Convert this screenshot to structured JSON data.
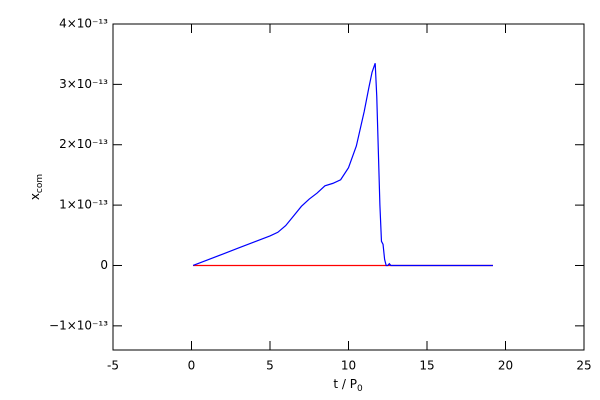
{
  "chart_data": {
    "type": "line",
    "xlabel": {
      "text": "t / P",
      "sub": "0"
    },
    "ylabel": {
      "text": "x",
      "sub": "com"
    },
    "xlim": [
      -5,
      25
    ],
    "xticks": [
      -5,
      0,
      5,
      10,
      15,
      20,
      25
    ],
    "ylim": [
      -1.4e-13,
      4e-13
    ],
    "yticks": [
      {
        "value": -1e-13,
        "label": "−1×10⁻¹³"
      },
      0,
      {
        "value": 1e-13,
        "label": "1×10⁻¹³"
      },
      {
        "value": 2e-13,
        "label": "2×10⁻¹³"
      },
      {
        "value": 3e-13,
        "label": "3×10⁻¹³"
      },
      {
        "value": 4e-13,
        "label": "4×10⁻¹³"
      }
    ],
    "series": [
      {
        "color": "#ff0000",
        "x": [
          0.1,
          5,
          10,
          12.4,
          15,
          19.2
        ],
        "values": [
          0,
          0,
          0,
          0,
          0,
          0
        ]
      },
      {
        "color": "#0000ff",
        "x": [
          0.1,
          1,
          2,
          3,
          4,
          5,
          5.5,
          6,
          6.5,
          7,
          7.5,
          8,
          8.5,
          9,
          9.5,
          10,
          10.5,
          11,
          11.3,
          11.5,
          11.7,
          11.8,
          11.9,
          12.0,
          12.1,
          12.2,
          12.3,
          12.4,
          12.5,
          12.6,
          12.7,
          13,
          15,
          17,
          19.2
        ],
        "values": [
          0,
          9e-15,
          1.9e-14,
          2.9e-14,
          3.9e-14,
          4.9e-14,
          5.5e-14,
          6.6e-14,
          8.2e-14,
          9.8e-14,
          1.1e-13,
          1.2e-13,
          1.32e-13,
          1.36e-13,
          1.42e-13,
          1.62e-13,
          1.98e-13,
          2.55e-13,
          2.95e-13,
          3.2e-13,
          3.35e-13,
          2.8e-13,
          1.9e-13,
          1e-13,
          4e-14,
          3.5e-14,
          1e-14,
          0,
          0,
          3e-15,
          0,
          0,
          0,
          0,
          0
        ]
      }
    ]
  }
}
